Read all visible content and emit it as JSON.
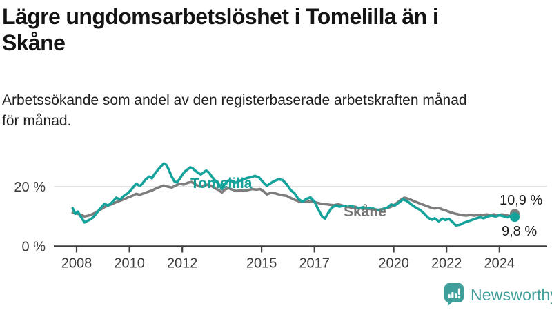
{
  "header": {
    "title": "Lägre ungdomsarbetslöshet i Tomelilla än i\nSkåne",
    "subtitle": "Arbetssökande som andel av den registerbaserade arbetskraften månad\nför månad."
  },
  "footer": {
    "brand": "Newsworthy"
  },
  "colors": {
    "tomelilla": "#14a29a",
    "skane": "#7d7d7d",
    "grid": "#d9d9d9",
    "axis": "#3c3c3c",
    "tick_text": "#3c3c3c",
    "annotation_text": "#1a1a1a",
    "brand": "#3f9e99"
  },
  "chart_data": {
    "type": "line",
    "title": "Lägre ungdomsarbetslöshet i Tomelilla än i Skåne",
    "subtitle": "Arbetssökande som andel av den registerbaserade arbetskraften månad för månad.",
    "unit": "%",
    "ylim": [
      0,
      30
    ],
    "x_range": [
      2007.85,
      2024.58
    ],
    "grid": "single-line-at-20",
    "grid_lines": [
      20
    ],
    "legend_position": "inline-labels",
    "y_ticks": [
      {
        "value": 20,
        "label": "20 %"
      },
      {
        "value": 0,
        "label": "0 %"
      }
    ],
    "x_ticks": [
      {
        "value": 2008,
        "label": "2008"
      },
      {
        "value": 2010,
        "label": "2010"
      },
      {
        "value": 2012,
        "label": "2012"
      },
      {
        "value": 2015,
        "label": "2015"
      },
      {
        "value": 2017,
        "label": "2017"
      },
      {
        "value": 2020,
        "label": "2020"
      },
      {
        "value": 2022,
        "label": "2022"
      },
      {
        "value": 2024,
        "label": "2024"
      }
    ],
    "series": [
      {
        "name": "Skåne",
        "color": "#7d7d7d",
        "end_label": "10,9 %",
        "end_value": 10.9,
        "points": [
          [
            2007.85,
            11.2
          ],
          [
            2008.0,
            11.0
          ],
          [
            2008.15,
            10.6
          ],
          [
            2008.3,
            10.0
          ],
          [
            2008.45,
            10.3
          ],
          [
            2008.6,
            10.8
          ],
          [
            2008.75,
            11.5
          ],
          [
            2008.9,
            12.3
          ],
          [
            2009.05,
            13.1
          ],
          [
            2009.2,
            13.7
          ],
          [
            2009.35,
            14.2
          ],
          [
            2009.5,
            14.8
          ],
          [
            2009.65,
            15.3
          ],
          [
            2009.8,
            15.8
          ],
          [
            2009.95,
            16.4
          ],
          [
            2010.1,
            16.9
          ],
          [
            2010.25,
            17.6
          ],
          [
            2010.4,
            17.3
          ],
          [
            2010.55,
            17.8
          ],
          [
            2010.7,
            18.3
          ],
          [
            2010.85,
            18.7
          ],
          [
            2011.0,
            19.4
          ],
          [
            2011.15,
            19.9
          ],
          [
            2011.3,
            20.4
          ],
          [
            2011.45,
            20.0
          ],
          [
            2011.6,
            19.7
          ],
          [
            2011.75,
            20.4
          ],
          [
            2011.9,
            21.0
          ],
          [
            2012.05,
            20.7
          ],
          [
            2012.2,
            21.3
          ],
          [
            2012.35,
            21.6
          ],
          [
            2012.5,
            20.8
          ],
          [
            2012.65,
            20.0
          ],
          [
            2012.8,
            20.3
          ],
          [
            2012.95,
            20.7
          ],
          [
            2013.1,
            20.2
          ],
          [
            2013.25,
            19.4
          ],
          [
            2013.4,
            18.8
          ],
          [
            2013.5,
            18.0
          ],
          [
            2013.6,
            19.0
          ],
          [
            2013.75,
            19.5
          ],
          [
            2013.9,
            19.0
          ],
          [
            2014.05,
            18.5
          ],
          [
            2014.2,
            18.8
          ],
          [
            2014.35,
            18.6
          ],
          [
            2014.5,
            18.9
          ],
          [
            2014.65,
            19.2
          ],
          [
            2014.8,
            19.0
          ],
          [
            2014.95,
            19.2
          ],
          [
            2015.1,
            18.3
          ],
          [
            2015.2,
            17.4
          ],
          [
            2015.35,
            17.9
          ],
          [
            2015.5,
            17.8
          ],
          [
            2015.65,
            17.4
          ],
          [
            2015.8,
            17.1
          ],
          [
            2015.95,
            16.9
          ],
          [
            2016.1,
            16.2
          ],
          [
            2016.25,
            15.6
          ],
          [
            2016.4,
            15.1
          ],
          [
            2016.55,
            15.0
          ],
          [
            2016.7,
            14.9
          ],
          [
            2016.85,
            15.1
          ],
          [
            2017.0,
            14.8
          ],
          [
            2017.15,
            14.5
          ],
          [
            2017.3,
            14.2
          ],
          [
            2017.45,
            14.1
          ],
          [
            2017.6,
            13.9
          ],
          [
            2017.75,
            13.8
          ],
          [
            2017.9,
            14.1
          ],
          [
            2018.05,
            13.7
          ],
          [
            2018.2,
            13.3
          ],
          [
            2018.35,
            13.1
          ],
          [
            2018.5,
            12.9
          ],
          [
            2018.65,
            12.8
          ],
          [
            2018.8,
            12.7
          ],
          [
            2018.95,
            12.6
          ],
          [
            2019.1,
            12.5
          ],
          [
            2019.25,
            12.3
          ],
          [
            2019.4,
            12.2
          ],
          [
            2019.55,
            12.4
          ],
          [
            2019.7,
            12.7
          ],
          [
            2019.85,
            13.1
          ],
          [
            2020.0,
            13.7
          ],
          [
            2020.1,
            14.4
          ],
          [
            2020.2,
            15.1
          ],
          [
            2020.3,
            15.8
          ],
          [
            2020.4,
            16.3
          ],
          [
            2020.5,
            16.1
          ],
          [
            2020.65,
            15.6
          ],
          [
            2020.8,
            15.0
          ],
          [
            2020.95,
            14.5
          ],
          [
            2021.1,
            14.0
          ],
          [
            2021.25,
            13.5
          ],
          [
            2021.4,
            13.0
          ],
          [
            2021.55,
            12.7
          ],
          [
            2021.7,
            12.9
          ],
          [
            2021.85,
            12.3
          ],
          [
            2022.0,
            11.9
          ],
          [
            2022.15,
            11.4
          ],
          [
            2022.3,
            11.0
          ],
          [
            2022.45,
            10.7
          ],
          [
            2022.6,
            10.4
          ],
          [
            2022.75,
            10.3
          ],
          [
            2022.9,
            10.5
          ],
          [
            2023.05,
            10.3
          ],
          [
            2023.2,
            10.6
          ],
          [
            2023.35,
            10.4
          ],
          [
            2023.5,
            10.7
          ],
          [
            2023.65,
            10.5
          ],
          [
            2023.8,
            10.7
          ],
          [
            2023.95,
            10.4
          ],
          [
            2024.1,
            10.7
          ],
          [
            2024.25,
            10.4
          ],
          [
            2024.4,
            10.2
          ],
          [
            2024.5,
            10.6
          ],
          [
            2024.58,
            10.9
          ]
        ]
      },
      {
        "name": "Tomelilla",
        "color": "#14a29a",
        "end_label": "9,8 %",
        "end_value": 9.8,
        "points": [
          [
            2007.85,
            12.8
          ],
          [
            2007.95,
            10.9
          ],
          [
            2008.05,
            11.6
          ],
          [
            2008.15,
            10.1
          ],
          [
            2008.3,
            8.0
          ],
          [
            2008.45,
            8.7
          ],
          [
            2008.6,
            9.5
          ],
          [
            2008.75,
            11.0
          ],
          [
            2008.9,
            12.7
          ],
          [
            2009.05,
            14.2
          ],
          [
            2009.2,
            13.7
          ],
          [
            2009.35,
            14.8
          ],
          [
            2009.5,
            16.3
          ],
          [
            2009.65,
            15.7
          ],
          [
            2009.8,
            17.0
          ],
          [
            2009.95,
            17.9
          ],
          [
            2010.1,
            19.3
          ],
          [
            2010.25,
            21.0
          ],
          [
            2010.4,
            20.2
          ],
          [
            2010.5,
            21.2
          ],
          [
            2010.6,
            22.3
          ],
          [
            2010.75,
            23.4
          ],
          [
            2010.85,
            22.8
          ],
          [
            2010.95,
            24.2
          ],
          [
            2011.1,
            25.9
          ],
          [
            2011.2,
            26.9
          ],
          [
            2011.3,
            27.8
          ],
          [
            2011.4,
            27.3
          ],
          [
            2011.5,
            25.5
          ],
          [
            2011.6,
            23.3
          ],
          [
            2011.7,
            21.8
          ],
          [
            2011.8,
            21.4
          ],
          [
            2011.9,
            22.6
          ],
          [
            2012.0,
            24.0
          ],
          [
            2012.1,
            25.1
          ],
          [
            2012.2,
            25.8
          ],
          [
            2012.3,
            26.5
          ],
          [
            2012.4,
            26.1
          ],
          [
            2012.5,
            25.3
          ],
          [
            2012.6,
            24.6
          ],
          [
            2012.7,
            24.1
          ],
          [
            2012.8,
            24.7
          ],
          [
            2012.9,
            25.4
          ],
          [
            2013.0,
            24.8
          ],
          [
            2013.1,
            23.6
          ],
          [
            2013.2,
            22.4
          ],
          [
            2013.3,
            21.6
          ],
          [
            2013.4,
            20.6
          ],
          [
            2013.5,
            19.2
          ],
          [
            2013.6,
            20.8
          ],
          [
            2013.7,
            21.8
          ],
          [
            2013.8,
            22.3
          ],
          [
            2013.9,
            21.7
          ],
          [
            2014.0,
            21.3
          ],
          [
            2014.15,
            21.9
          ],
          [
            2014.3,
            22.4
          ],
          [
            2014.45,
            22.9
          ],
          [
            2014.6,
            23.2
          ],
          [
            2014.75,
            23.6
          ],
          [
            2014.9,
            23.1
          ],
          [
            2015.05,
            21.6
          ],
          [
            2015.2,
            20.3
          ],
          [
            2015.35,
            21.2
          ],
          [
            2015.5,
            22.0
          ],
          [
            2015.65,
            22.5
          ],
          [
            2015.8,
            22.2
          ],
          [
            2015.95,
            20.8
          ],
          [
            2016.1,
            18.9
          ],
          [
            2016.25,
            17.7
          ],
          [
            2016.4,
            15.8
          ],
          [
            2016.55,
            15.0
          ],
          [
            2016.7,
            15.9
          ],
          [
            2016.85,
            16.4
          ],
          [
            2017.0,
            15.0
          ],
          [
            2017.15,
            12.3
          ],
          [
            2017.3,
            9.9
          ],
          [
            2017.4,
            9.3
          ],
          [
            2017.5,
            10.9
          ],
          [
            2017.65,
            12.9
          ],
          [
            2017.8,
            13.7
          ],
          [
            2017.95,
            13.3
          ],
          [
            2018.1,
            13.6
          ],
          [
            2018.25,
            13.2
          ],
          [
            2018.4,
            13.5
          ],
          [
            2018.55,
            13.1
          ],
          [
            2018.7,
            12.8
          ],
          [
            2018.85,
            13.1
          ],
          [
            2019.0,
            12.7
          ],
          [
            2019.15,
            12.9
          ],
          [
            2019.3,
            12.4
          ],
          [
            2019.45,
            12.1
          ],
          [
            2019.6,
            12.5
          ],
          [
            2019.75,
            12.9
          ],
          [
            2019.9,
            14.0
          ],
          [
            2020.05,
            13.7
          ],
          [
            2020.2,
            14.7
          ],
          [
            2020.35,
            15.7
          ],
          [
            2020.45,
            15.4
          ],
          [
            2020.55,
            14.9
          ],
          [
            2020.7,
            13.8
          ],
          [
            2020.85,
            12.9
          ],
          [
            2021.0,
            12.2
          ],
          [
            2021.15,
            11.0
          ],
          [
            2021.3,
            9.6
          ],
          [
            2021.45,
            8.9
          ],
          [
            2021.55,
            9.4
          ],
          [
            2021.7,
            8.4
          ],
          [
            2021.85,
            9.3
          ],
          [
            2021.95,
            8.8
          ],
          [
            2022.1,
            9.2
          ],
          [
            2022.25,
            7.9
          ],
          [
            2022.35,
            7.0
          ],
          [
            2022.5,
            7.2
          ],
          [
            2022.65,
            7.9
          ],
          [
            2022.8,
            8.3
          ],
          [
            2022.95,
            8.8
          ],
          [
            2023.1,
            9.3
          ],
          [
            2023.25,
            9.7
          ],
          [
            2023.4,
            9.4
          ],
          [
            2023.55,
            10.0
          ],
          [
            2023.7,
            10.3
          ],
          [
            2023.85,
            10.0
          ],
          [
            2024.0,
            10.4
          ],
          [
            2024.15,
            10.1
          ],
          [
            2024.3,
            9.7
          ],
          [
            2024.4,
            10.1
          ],
          [
            2024.5,
            9.6
          ],
          [
            2024.58,
            9.8
          ]
        ]
      }
    ]
  }
}
